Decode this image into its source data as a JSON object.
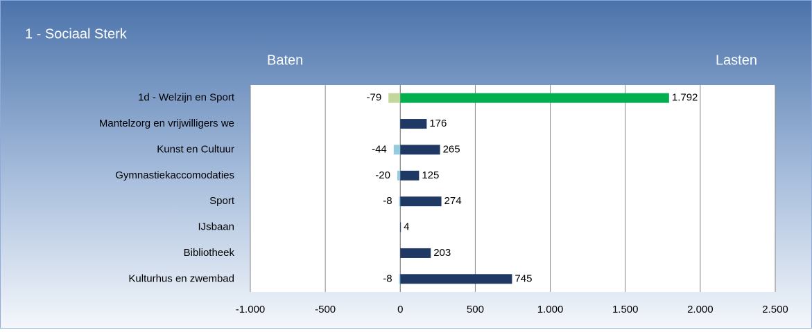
{
  "chart_data": {
    "type": "bar",
    "orientation": "horizontal",
    "title": "1 - Sociaal Sterk",
    "categories": [
      "1d - Welzijn en Sport",
      "Mantelzorg en vrijwilligers we",
      "Kunst en Cultuur",
      "Gymnastiekaccomodaties",
      "Sport",
      "IJsbaan",
      "Bibliotheek",
      "Kulturhus en zwembad"
    ],
    "series": [
      {
        "name": "Baten",
        "colors": [
          "#c3d69b",
          "#93cddd",
          "#93cddd",
          "#93cddd",
          "#93cddd",
          "#93cddd",
          "#93cddd",
          "#93cddd"
        ],
        "values": [
          -79,
          null,
          -44,
          -20,
          -8,
          null,
          null,
          -8
        ]
      },
      {
        "name": "Lasten",
        "colors": [
          "#00b050",
          "#1f3864",
          "#1f3864",
          "#1f3864",
          "#1f3864",
          "#1f3864",
          "#1f3864",
          "#1f3864"
        ],
        "values": [
          1792,
          176,
          265,
          125,
          274,
          4,
          203,
          745
        ],
        "value_labels": [
          "1.792",
          "176",
          "265",
          "125",
          "274",
          "4",
          "203",
          "745"
        ]
      }
    ],
    "xlim": [
      -1000,
      2500
    ],
    "xticks": [
      {
        "value": -1000,
        "label": "-1.000"
      },
      -500,
      0,
      500,
      {
        "value": 1000,
        "label": "1.000"
      },
      {
        "value": 1500,
        "label": "1.500"
      },
      {
        "value": 2000,
        "label": "2.000"
      },
      {
        "value": 2500,
        "label": "2.500"
      }
    ],
    "grid": true
  }
}
